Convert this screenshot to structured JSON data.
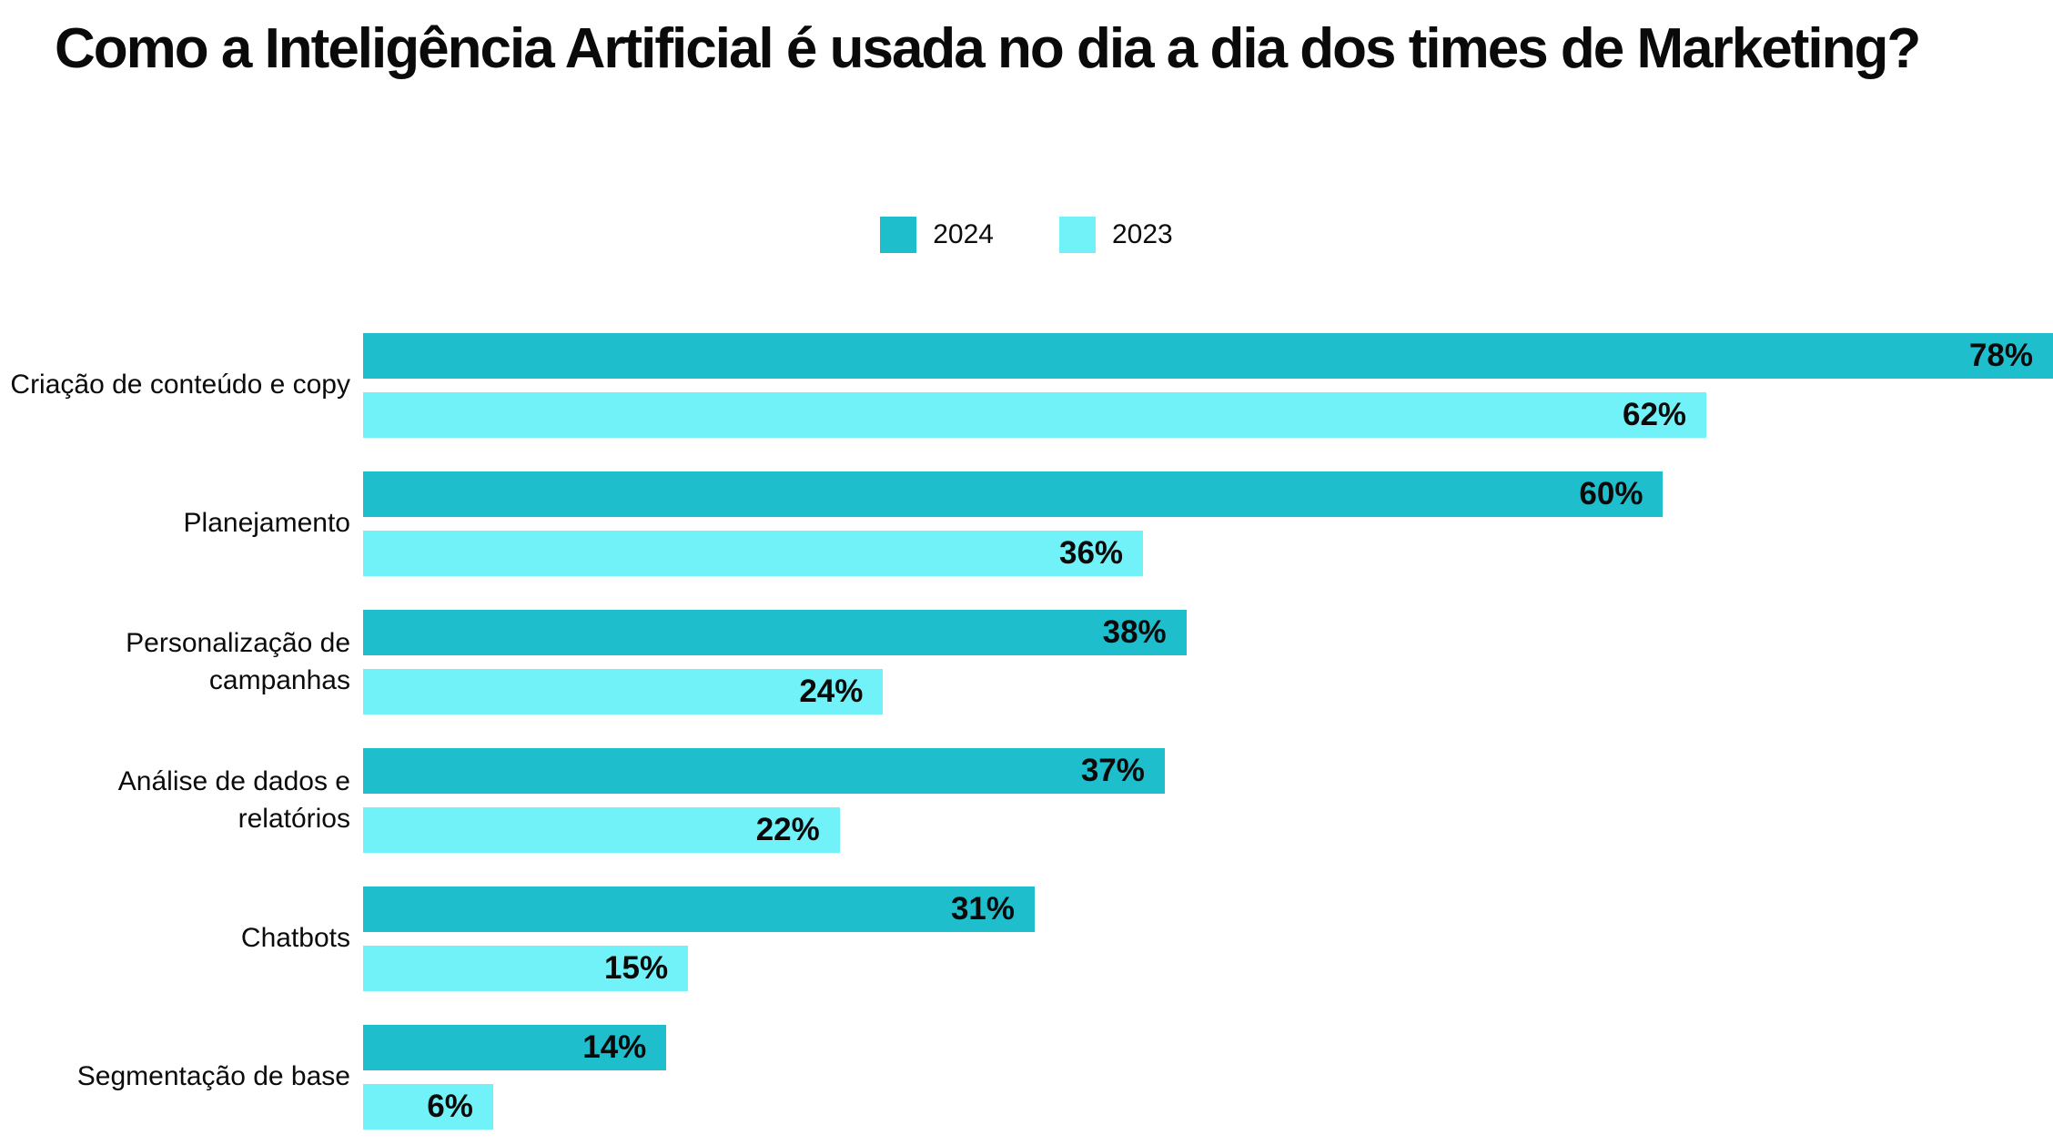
{
  "title": "Como a Inteligência Artificial é usada no dia a dia dos times de Marketing?",
  "legend": [
    {
      "label": "2024",
      "color": "#1EBECD"
    },
    {
      "label": "2023",
      "color": "#70F2F8"
    }
  ],
  "colors": {
    "series_2024": "#1EBECD",
    "series_2023": "#70F2F8",
    "text": "#0A0A0A",
    "background": "#FFFFFF"
  },
  "chart_data": {
    "type": "bar",
    "orientation": "horizontal",
    "title": "Como a Inteligência Artificial é usada no dia a dia dos times de Marketing?",
    "categories": [
      "Criação de conteúdo e copy",
      "Planejamento",
      "Personalização de campanhas",
      "Análise de dados e relatórios",
      "Chatbots",
      "Segmentação de base"
    ],
    "series": [
      {
        "name": "2024",
        "color": "#1EBECD",
        "values": [
          78,
          60,
          38,
          37,
          31,
          14
        ]
      },
      {
        "name": "2023",
        "color": "#70F2F8",
        "values": [
          62,
          36,
          24,
          22,
          15,
          6
        ]
      }
    ],
    "value_suffix": "%",
    "xlabel": "",
    "ylabel": "",
    "xlim": [
      0,
      78
    ],
    "grid": false,
    "axis_ticks": false,
    "legend_position": "top-center",
    "value_labels": "inside-end"
  }
}
